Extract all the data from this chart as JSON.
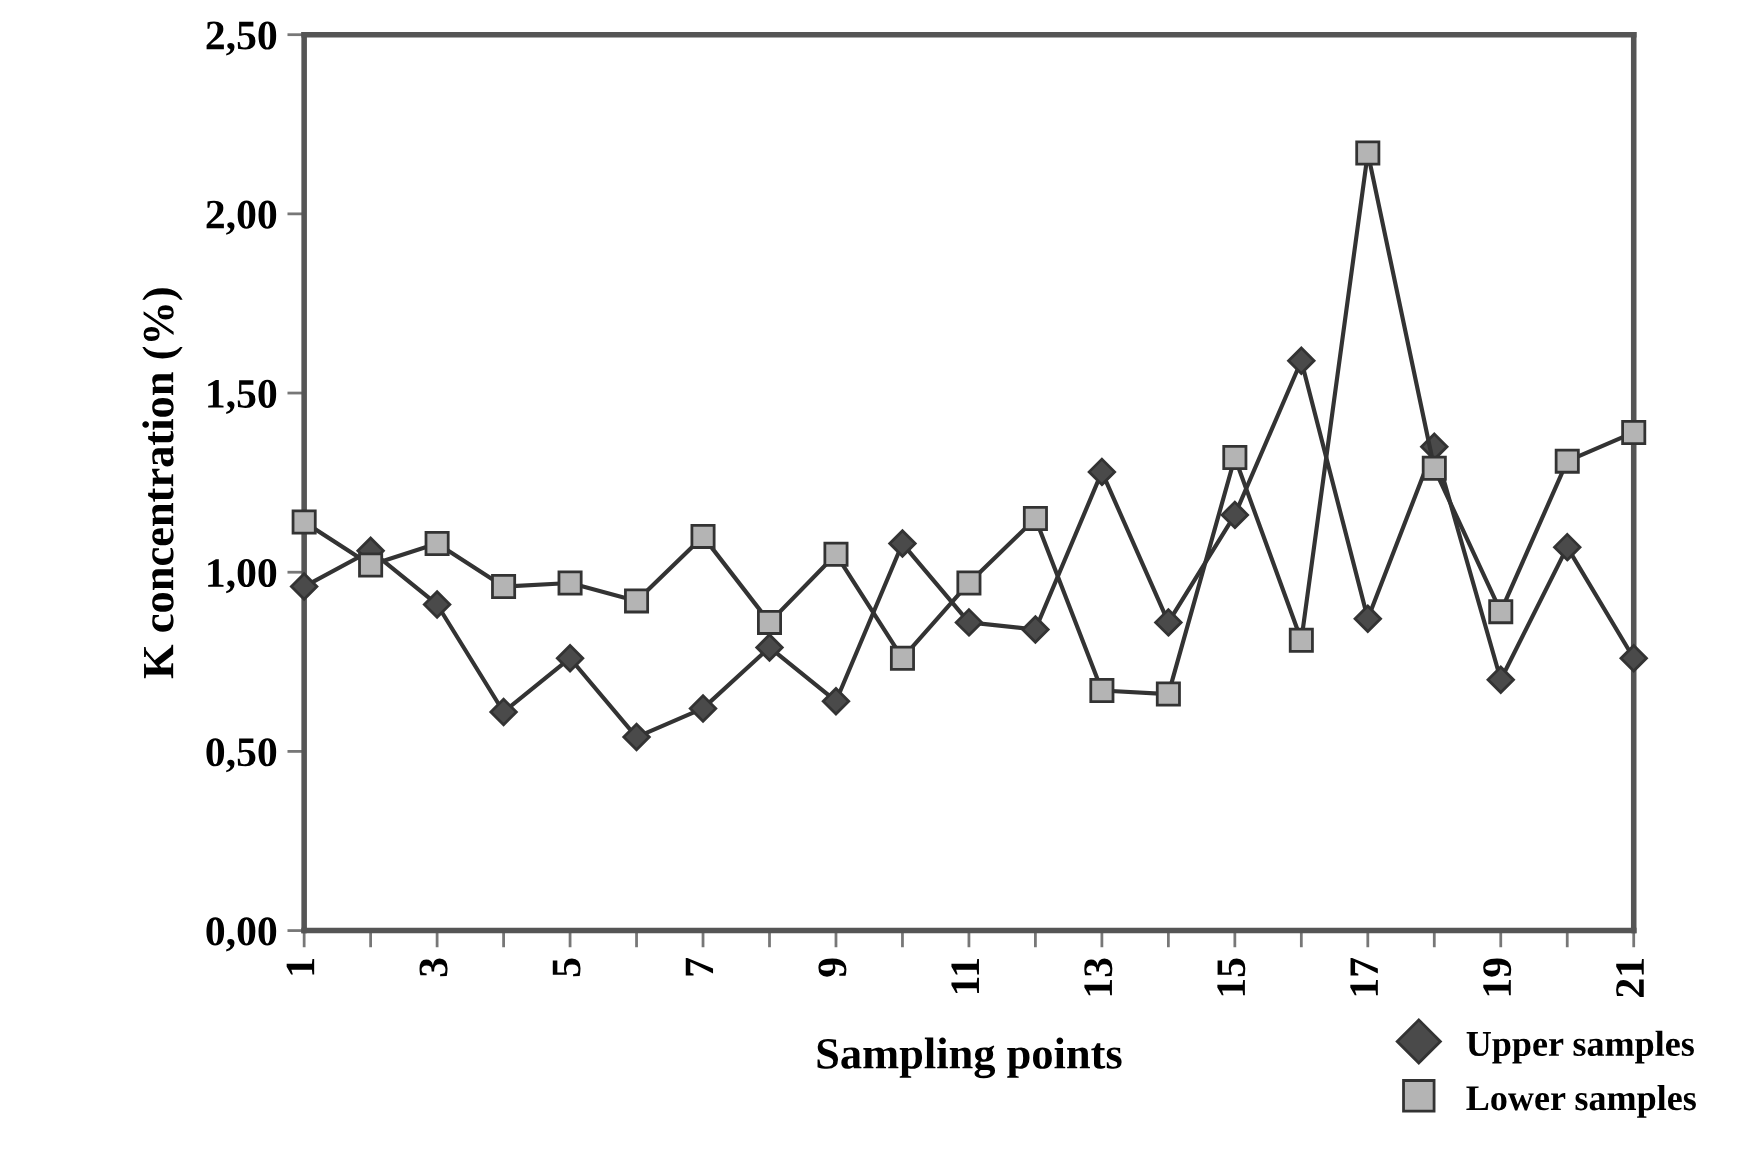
{
  "chart_data": {
    "type": "line",
    "xlabel": "Sampling points",
    "ylabel": "K concentration (%)",
    "categories": [
      "1",
      null,
      "3",
      null,
      "5",
      null,
      "7",
      null,
      "9",
      null,
      "11",
      null,
      "13",
      null,
      "15",
      null,
      "17",
      null,
      "19",
      null,
      "21"
    ],
    "ylim": [
      0,
      2.5
    ],
    "yticks": [
      {
        "value": 0,
        "label": "0,00"
      },
      {
        "value": 0.5,
        "label": "0,50"
      },
      {
        "value": 1,
        "label": "1,00"
      },
      {
        "value": 1.5,
        "label": "1,50"
      },
      {
        "value": 2,
        "label": "2,00"
      },
      {
        "value": 2.5,
        "label": "2,50"
      }
    ],
    "grid": false,
    "legend": "bottom right",
    "series": [
      {
        "name": "Upper samples",
        "color": "#4a4a4a",
        "marker": "diamond",
        "values": [
          0.96,
          1.06,
          0.91,
          0.61,
          0.76,
          0.54,
          0.62,
          0.79,
          0.64,
          1.08,
          0.86,
          0.84,
          1.28,
          0.86,
          1.16,
          1.59,
          0.87,
          1.35,
          0.7,
          1.07,
          0.76
        ]
      },
      {
        "name": "Lower samples",
        "color": "#b4b4b4",
        "marker": "square",
        "values": [
          1.14,
          1.02,
          1.08,
          0.96,
          0.97,
          0.92,
          1.1,
          0.86,
          1.05,
          0.76,
          0.97,
          1.15,
          0.67,
          0.66,
          1.32,
          0.81,
          2.17,
          1.29,
          0.89,
          1.31,
          1.39
        ]
      }
    ]
  }
}
